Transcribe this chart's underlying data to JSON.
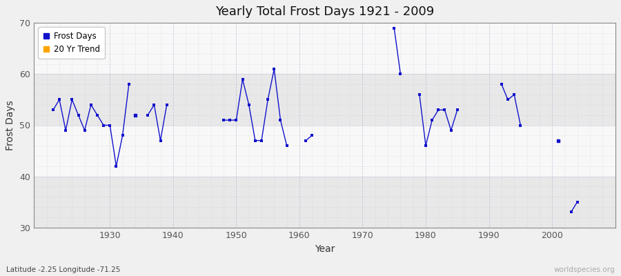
{
  "title": "Yearly Total Frost Days 1921 - 2009",
  "xlabel": "Year",
  "ylabel": "Frost Days",
  "ylim": [
    30,
    70
  ],
  "xlim": [
    1918,
    2010
  ],
  "yticks": [
    30,
    40,
    50,
    60,
    70
  ],
  "xticks": [
    1930,
    1940,
    1950,
    1960,
    1970,
    1980,
    1990,
    2000
  ],
  "line_color": "#1111cc",
  "marker_color": "#1111cc",
  "trend_color": "#ffa500",
  "bg_outer": "#f0f0f0",
  "bg_plot": "#f8f8f8",
  "band_color_dark": "#e8e8e8",
  "band_color_light": "#f8f8f8",
  "grid_color": "#aaaacc",
  "connected_segments": [
    {
      "years": [
        1921,
        1922,
        1923,
        1924,
        1925,
        1926,
        1927,
        1928,
        1929,
        1930,
        1931,
        1932,
        1933
      ],
      "values": [
        53,
        55,
        49,
        55,
        52,
        49,
        54,
        52,
        50,
        50,
        42,
        48,
        58
      ]
    },
    {
      "years": [
        1936,
        1937,
        1938,
        1939
      ],
      "values": [
        52,
        54,
        47,
        54
      ]
    },
    {
      "years": [
        1948,
        1949,
        1950,
        1951,
        1952,
        1953,
        1954,
        1955,
        1956,
        1957,
        1958
      ],
      "values": [
        51,
        51,
        51,
        59,
        54,
        47,
        47,
        55,
        61,
        51,
        46
      ]
    },
    {
      "years": [
        1961,
        1962
      ],
      "values": [
        47,
        48
      ]
    },
    {
      "years": [
        1975,
        1976
      ],
      "values": [
        69,
        60
      ]
    },
    {
      "years": [
        1979,
        1980,
        1981,
        1982,
        1983,
        1984,
        1985
      ],
      "values": [
        56,
        46,
        51,
        53,
        53,
        49,
        53
      ]
    },
    {
      "years": [
        1992,
        1993,
        1994,
        1995
      ],
      "values": [
        58,
        55,
        56,
        50
      ]
    },
    {
      "years": [
        2003,
        2004
      ],
      "values": [
        33,
        35
      ]
    }
  ],
  "isolated_points": [
    {
      "year": 1934,
      "value": 52
    },
    {
      "year": 2001,
      "value": 47
    }
  ],
  "subtitle": "Latitude -2.25 Longitude -71.25",
  "watermark": "worldspecies.org"
}
